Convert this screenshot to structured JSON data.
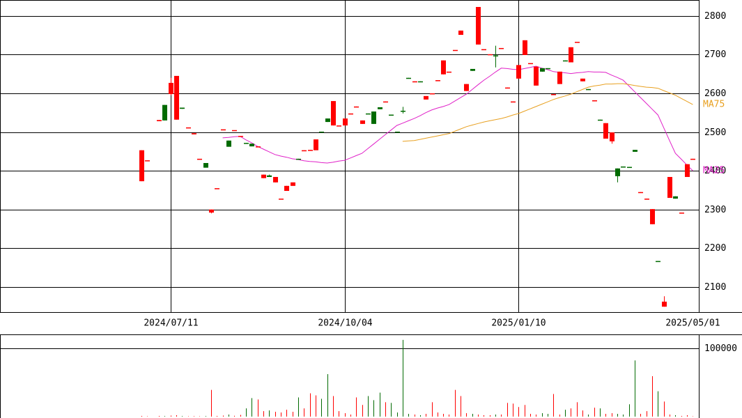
{
  "chart_data": {
    "type": "candlestick",
    "categories": [
      null,
      null,
      null,
      null,
      null,
      "2024/07/11",
      null,
      null,
      null,
      null,
      null,
      null,
      null,
      null,
      null,
      null,
      null,
      null,
      null,
      null,
      null,
      null,
      null,
      null,
      null,
      null,
      null,
      null,
      null,
      null,
      null,
      null,
      null,
      null,
      null,
      "2024/10/04",
      null,
      null,
      null,
      null,
      null,
      null,
      null,
      null,
      null,
      null,
      null,
      null,
      null,
      null,
      null,
      null,
      null,
      null,
      null,
      null,
      null,
      null,
      null,
      null,
      null,
      null,
      null,
      null,
      null,
      "2025/01/10",
      null,
      null,
      null,
      null,
      null,
      null,
      null,
      null,
      null,
      null,
      null,
      null,
      null,
      null,
      null,
      null,
      null,
      null,
      null,
      null,
      null,
      null,
      null,
      null,
      null,
      null,
      null,
      null,
      null,
      "2025/05/01"
    ],
    "open": [
      2373,
      2427,
      null,
      2528,
      2570,
      2598,
      2532,
      2563,
      2512,
      2494,
      2431,
      2420,
      2292,
      2355,
      2507,
      2478,
      2505,
      2490,
      2472,
      2470,
      2463,
      2381,
      2388,
      2370,
      2328,
      2348,
      2361,
      2431,
      2451,
      2452,
      2453,
      2501,
      2535,
      2517,
      2517,
      2517,
      2548,
      2564,
      2521,
      2548,
      2553,
      2564,
      2577,
      2545,
      2501,
      2555,
      2640,
      2629,
      2631,
      2584,
      2598,
      2632,
      2649,
      2656,
      2712,
      2751,
      2606,
      2663,
      2726,
      2714,
      2699,
      2698,
      2717,
      2613,
      2577,
      2638,
      2699,
      2678,
      2620,
      2665,
      2665,
      2596,
      2624,
      2685,
      2680,
      2733,
      2631,
      2611,
      2580,
      2532,
      2483,
      2476,
      2406,
      2411,
      2410,
      2454,
      2343,
      2326,
      2262,
      2167,
      2049,
      2330,
      2334,
      2292,
      2384,
      2429
    ],
    "high": [
      2453,
      2427,
      null,
      2531,
      2570,
      2640,
      2645,
      2563,
      2512,
      2497,
      2431,
      2420,
      2300,
      2355,
      2507,
      2478,
      2505,
      2490,
      2472,
      2470,
      2463,
      2390,
      2390,
      2384,
      2328,
      2361,
      2370,
      2431,
      2453,
      2454,
      2481,
      2501,
      2535,
      2580,
      2517,
      2535,
      2548,
      2566,
      2530,
      2548,
      2553,
      2564,
      2579,
      2545,
      2501,
      2565,
      2640,
      2631,
      2631,
      2593,
      2600,
      2634,
      2685,
      2656,
      2712,
      2762,
      2624,
      2663,
      2823,
      2714,
      2701,
      2723,
      2717,
      2615,
      2579,
      2673,
      2737,
      2678,
      2669,
      2665,
      2665,
      2598,
      2656,
      2685,
      2719,
      2733,
      2638,
      2611,
      2582,
      2532,
      2523,
      2499,
      2406,
      2411,
      2410,
      2454,
      2345,
      2328,
      2301,
      2167,
      2076,
      2384,
      2334,
      2292,
      2417,
      2431
    ],
    "low": [
      2373,
      2427,
      null,
      2528,
      2530,
      2595,
      2532,
      2560,
      2512,
      2494,
      2431,
      2408,
      2290,
      2355,
      2507,
      2462,
      2505,
      2490,
      2470,
      2463,
      2463,
      2381,
      2384,
      2370,
      2328,
      2348,
      2361,
      2429,
      2451,
      2452,
      2453,
      2499,
      2526,
      2517,
      2517,
      2517,
      2548,
      2564,
      2521,
      2546,
      2521,
      2559,
      2577,
      2543,
      2499,
      2548,
      2638,
      2629,
      2629,
      2584,
      2598,
      2632,
      2649,
      2656,
      2712,
      2751,
      2606,
      2658,
      2726,
      2714,
      2699,
      2667,
      2717,
      2613,
      2577,
      2638,
      2699,
      2678,
      2620,
      2656,
      2663,
      2596,
      2624,
      2683,
      2680,
      2733,
      2631,
      2609,
      2580,
      2530,
      2483,
      2470,
      2370,
      2409,
      2408,
      2449,
      2343,
      2326,
      2262,
      2165,
      2049,
      2330,
      2328,
      2292,
      2384,
      2429
    ],
    "close": [
      2453,
      2427,
      null,
      2531,
      2530,
      2627,
      2645,
      2560,
      2512,
      2497,
      2431,
      2408,
      2300,
      2355,
      2507,
      2462,
      2505,
      2490,
      2470,
      2463,
      2463,
      2390,
      2384,
      2384,
      2328,
      2361,
      2370,
      2429,
      2453,
      2454,
      2481,
      2499,
      2526,
      2580,
      2517,
      2535,
      2548,
      2566,
      2530,
      2546,
      2521,
      2559,
      2579,
      2543,
      2499,
      2553,
      2638,
      2631,
      2629,
      2593,
      2600,
      2634,
      2685,
      2656,
      2712,
      2762,
      2624,
      2658,
      2823,
      2714,
      2701,
      2697,
      2717,
      2615,
      2579,
      2673,
      2737,
      2678,
      2669,
      2656,
      2663,
      2598,
      2656,
      2683,
      2719,
      2733,
      2638,
      2609,
      2582,
      2530,
      2523,
      2499,
      2386,
      2409,
      2408,
      2449,
      2345,
      2328,
      2301,
      2165,
      2062,
      2384,
      2328,
      2292,
      2417,
      2431
    ],
    "volume": [
      1000,
      500,
      null,
      1000,
      800,
      1500,
      2000,
      800,
      500,
      700,
      500,
      800,
      39000,
      1000,
      1500,
      3000,
      1200,
      2500,
      12000,
      27000,
      25000,
      8000,
      9000,
      7000,
      6000,
      10000,
      7000,
      28000,
      12000,
      34000,
      31000,
      26000,
      62000,
      30000,
      8000,
      5000,
      3000,
      28000,
      17000,
      30000,
      24000,
      35000,
      21000,
      20000,
      6000,
      112000,
      4000,
      3000,
      2000,
      4000,
      21000,
      6000,
      4000,
      3000,
      39000,
      30000,
      5000,
      4000,
      3000,
      2000,
      2000,
      3000,
      3000,
      20000,
      19000,
      14000,
      17000,
      4000,
      3000,
      5000,
      4000,
      33000,
      3000,
      10000,
      12000,
      21000,
      9000,
      3000,
      13000,
      12000,
      4000,
      5000,
      4000,
      3000,
      18000,
      82000,
      4000,
      8000,
      59000,
      37000,
      22000,
      3000,
      2000,
      1000,
      2000,
      500
    ],
    "series": [
      {
        "name": "MA25",
        "color": "#e020c8",
        "values": [
          null,
          null,
          null,
          null,
          null,
          null,
          null,
          null,
          null,
          null,
          null,
          null,
          null,
          null,
          2485,
          2486,
          2488,
          2489,
          2480,
          2472,
          2463,
          2456,
          2449,
          2442,
          2438,
          2435,
          2431,
          2429,
          2426,
          2424,
          2423,
          2421,
          2420,
          2422,
          2425,
          2427,
          2433,
          2439,
          2445,
          2457,
          2469,
          2481,
          2493,
          2505,
          2517,
          2523,
          2529,
          2535,
          2542,
          2550,
          2557,
          2562,
          2566,
          2571,
          2580,
          2589,
          2598,
          2610,
          2622,
          2634,
          2644,
          2655,
          2665,
          2664,
          2662,
          2661,
          2664,
          2667,
          2670,
          2665,
          2661,
          2656,
          2654,
          2653,
          2651,
          2653,
          2654,
          2656,
          2655,
          2655,
          2654,
          2647,
          2641,
          2634,
          2619,
          2604,
          2589,
          2574,
          2559,
          2544,
          2511,
          2478,
          2445,
          2430,
          2415,
          2400
        ]
      },
      {
        "name": "MA75",
        "color": "#e8a020",
        "values": [
          null,
          null,
          null,
          null,
          null,
          null,
          null,
          null,
          null,
          null,
          null,
          null,
          null,
          null,
          null,
          null,
          null,
          null,
          null,
          null,
          null,
          null,
          null,
          null,
          null,
          null,
          null,
          null,
          null,
          null,
          null,
          null,
          null,
          null,
          null,
          null,
          null,
          null,
          null,
          null,
          null,
          null,
          null,
          null,
          null,
          2476,
          2477,
          2478,
          2481,
          2484,
          2487,
          2490,
          2493,
          2496,
          2502,
          2508,
          2514,
          2518,
          2522,
          2526,
          2529,
          2532,
          2535,
          2539,
          2544,
          2548,
          2554,
          2560,
          2566,
          2572,
          2578,
          2584,
          2589,
          2593,
          2598,
          2604,
          2610,
          2616,
          2619,
          2621,
          2624,
          2624,
          2625,
          2625,
          2623,
          2620,
          2618,
          2616,
          2615,
          2613,
          2607,
          2601,
          2595,
          2587,
          2579,
          2571
        ]
      }
    ],
    "up_color": "#ff0000",
    "down_color": "#006a00",
    "ylim": [
      2035,
      2841
    ],
    "yticks": [
      2100,
      2200,
      2300,
      2400,
      2500,
      2600,
      2700,
      2800
    ],
    "volume_ylim": [
      0,
      120000
    ],
    "volume_yticks": [
      100000
    ],
    "grid": true
  }
}
